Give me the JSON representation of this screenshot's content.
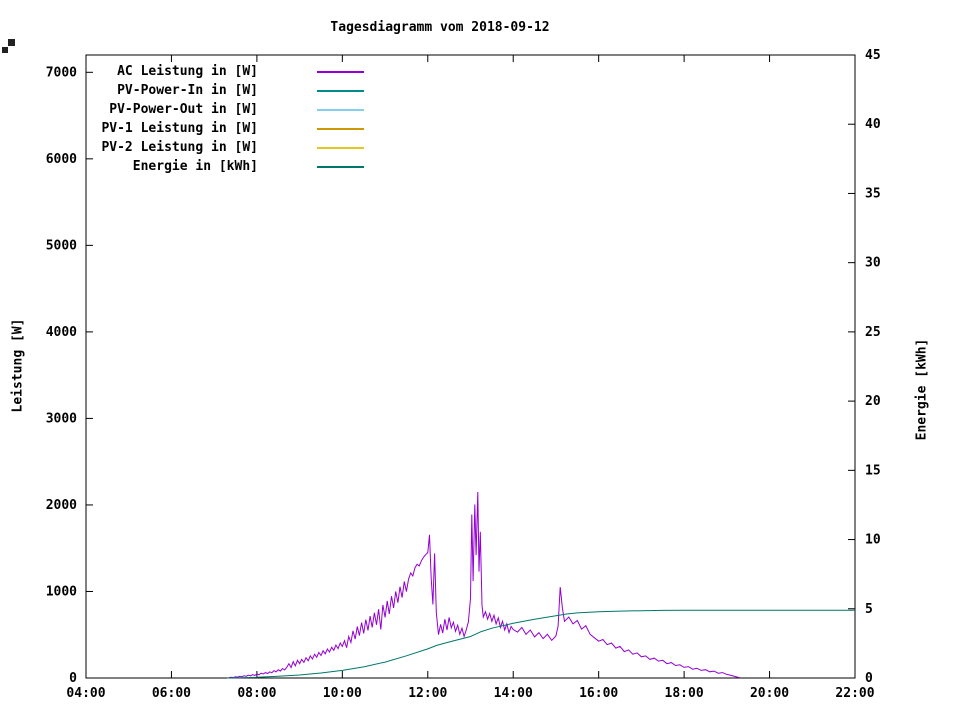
{
  "page": {
    "background": "#ffffff"
  },
  "chart_data": {
    "type": "line",
    "title": "Tagesdiagramm vom 2018-09-12",
    "grid": false,
    "legend_position": "top-left-inside",
    "x_axis": {
      "min_hour": 4,
      "max_hour": 22,
      "tick_step_hours": 2,
      "ticks": [
        "04:00",
        "06:00",
        "08:00",
        "10:00",
        "12:00",
        "14:00",
        "16:00",
        "18:00",
        "20:00",
        "22:00"
      ]
    },
    "y_left": {
      "label": "Leistung [W]",
      "min": 0,
      "max": 7200,
      "ticks": [
        0,
        1000,
        2000,
        3000,
        4000,
        5000,
        6000,
        7000
      ]
    },
    "y_right": {
      "label": "Energie [kWh]",
      "min": 0,
      "max": 45,
      "ticks": [
        0,
        5,
        10,
        15,
        20,
        25,
        30,
        35,
        40,
        45
      ]
    },
    "legend": [
      {
        "label": "AC Leistung in [W]",
        "color": "#9400d3"
      },
      {
        "label": "PV-Power-In in [W]",
        "color": "#008b8b"
      },
      {
        "label": "PV-Power-Out in [W]",
        "color": "#87ceeb"
      },
      {
        "label": "PV-1 Leistung in [W]",
        "color": "#cc9900"
      },
      {
        "label": "PV-2 Leistung in [W]",
        "color": "#e0c820"
      },
      {
        "label": "Energie in [kWh]",
        "color": "#00776b"
      }
    ],
    "series": [
      {
        "name": "AC Leistung in [W]",
        "axis": "left",
        "color": "#9400d3",
        "points": [
          [
            7.33,
            2
          ],
          [
            7.4,
            8
          ],
          [
            7.45,
            5
          ],
          [
            7.5,
            14
          ],
          [
            7.55,
            10
          ],
          [
            7.6,
            20
          ],
          [
            7.65,
            15
          ],
          [
            7.7,
            26
          ],
          [
            7.75,
            20
          ],
          [
            7.8,
            32
          ],
          [
            7.85,
            26
          ],
          [
            7.9,
            38
          ],
          [
            7.95,
            30
          ],
          [
            8.0,
            45
          ],
          [
            8.05,
            38
          ],
          [
            8.1,
            55
          ],
          [
            8.15,
            46
          ],
          [
            8.2,
            62
          ],
          [
            8.25,
            52
          ],
          [
            8.3,
            72
          ],
          [
            8.35,
            60
          ],
          [
            8.4,
            85
          ],
          [
            8.45,
            70
          ],
          [
            8.5,
            95
          ],
          [
            8.55,
            80
          ],
          [
            8.6,
            110
          ],
          [
            8.65,
            92
          ],
          [
            8.7,
            125
          ],
          [
            8.75,
            165
          ],
          [
            8.8,
            120
          ],
          [
            8.85,
            190
          ],
          [
            8.9,
            140
          ],
          [
            8.95,
            205
          ],
          [
            9.0,
            165
          ],
          [
            9.05,
            215
          ],
          [
            9.1,
            180
          ],
          [
            9.15,
            235
          ],
          [
            9.2,
            200
          ],
          [
            9.25,
            255
          ],
          [
            9.3,
            220
          ],
          [
            9.35,
            275
          ],
          [
            9.4,
            240
          ],
          [
            9.45,
            295
          ],
          [
            9.5,
            260
          ],
          [
            9.55,
            315
          ],
          [
            9.6,
            280
          ],
          [
            9.65,
            335
          ],
          [
            9.7,
            300
          ],
          [
            9.75,
            355
          ],
          [
            9.8,
            320
          ],
          [
            9.85,
            380
          ],
          [
            9.9,
            340
          ],
          [
            9.95,
            405
          ],
          [
            10.0,
            365
          ],
          [
            10.05,
            430
          ],
          [
            10.1,
            350
          ],
          [
            10.15,
            480
          ],
          [
            10.2,
            410
          ],
          [
            10.25,
            545
          ],
          [
            10.3,
            450
          ],
          [
            10.35,
            595
          ],
          [
            10.4,
            490
          ],
          [
            10.45,
            640
          ],
          [
            10.5,
            515
          ],
          [
            10.55,
            675
          ],
          [
            10.6,
            550
          ],
          [
            10.65,
            715
          ],
          [
            10.7,
            585
          ],
          [
            10.75,
            755
          ],
          [
            10.8,
            615
          ],
          [
            10.85,
            795
          ],
          [
            10.9,
            560
          ],
          [
            10.95,
            845
          ],
          [
            11.0,
            700
          ],
          [
            11.05,
            890
          ],
          [
            11.1,
            740
          ],
          [
            11.15,
            945
          ],
          [
            11.2,
            810
          ],
          [
            11.25,
            1000
          ],
          [
            11.3,
            870
          ],
          [
            11.35,
            1055
          ],
          [
            11.4,
            930
          ],
          [
            11.45,
            1115
          ],
          [
            11.5,
            1000
          ],
          [
            11.55,
            1145
          ],
          [
            11.6,
            1215
          ],
          [
            11.65,
            1180
          ],
          [
            11.7,
            1275
          ],
          [
            11.75,
            1315
          ],
          [
            11.8,
            1295
          ],
          [
            11.85,
            1355
          ],
          [
            11.9,
            1395
          ],
          [
            11.95,
            1425
          ],
          [
            12.0,
            1450
          ],
          [
            12.04,
            1655
          ],
          [
            12.08,
            1150
          ],
          [
            12.12,
            850
          ],
          [
            12.16,
            1440
          ],
          [
            12.2,
            760
          ],
          [
            12.25,
            500
          ],
          [
            12.3,
            620
          ],
          [
            12.35,
            520
          ],
          [
            12.4,
            680
          ],
          [
            12.45,
            555
          ],
          [
            12.5,
            700
          ],
          [
            12.55,
            580
          ],
          [
            12.6,
            645
          ],
          [
            12.65,
            540
          ],
          [
            12.7,
            610
          ],
          [
            12.75,
            505
          ],
          [
            12.8,
            575
          ],
          [
            12.85,
            480
          ],
          [
            12.9,
            555
          ],
          [
            12.95,
            650
          ],
          [
            13.0,
            920
          ],
          [
            13.03,
            1890
          ],
          [
            13.06,
            1120
          ],
          [
            13.1,
            2005
          ],
          [
            13.13,
            1420
          ],
          [
            13.17,
            2150
          ],
          [
            13.2,
            1230
          ],
          [
            13.23,
            1690
          ],
          [
            13.27,
            840
          ],
          [
            13.3,
            705
          ],
          [
            13.35,
            765
          ],
          [
            13.4,
            680
          ],
          [
            13.45,
            745
          ],
          [
            13.5,
            655
          ],
          [
            13.55,
            725
          ],
          [
            13.6,
            625
          ],
          [
            13.65,
            695
          ],
          [
            13.7,
            585
          ],
          [
            13.75,
            655
          ],
          [
            13.8,
            555
          ],
          [
            13.85,
            625
          ],
          [
            13.9,
            525
          ],
          [
            13.95,
            595
          ],
          [
            14.0,
            560
          ],
          [
            14.1,
            530
          ],
          [
            14.2,
            585
          ],
          [
            14.3,
            505
          ],
          [
            14.4,
            555
          ],
          [
            14.5,
            475
          ],
          [
            14.6,
            525
          ],
          [
            14.7,
            455
          ],
          [
            14.8,
            505
          ],
          [
            14.9,
            435
          ],
          [
            15.0,
            485
          ],
          [
            15.05,
            600
          ],
          [
            15.1,
            1050
          ],
          [
            15.15,
            810
          ],
          [
            15.2,
            655
          ],
          [
            15.3,
            705
          ],
          [
            15.4,
            625
          ],
          [
            15.5,
            665
          ],
          [
            15.6,
            565
          ],
          [
            15.7,
            605
          ],
          [
            15.8,
            505
          ],
          [
            15.9,
            465
          ],
          [
            16.0,
            425
          ],
          [
            16.1,
            445
          ],
          [
            16.2,
            385
          ],
          [
            16.3,
            405
          ],
          [
            16.4,
            345
          ],
          [
            16.5,
            365
          ],
          [
            16.6,
            305
          ],
          [
            16.7,
            325
          ],
          [
            16.8,
            275
          ],
          [
            16.9,
            290
          ],
          [
            17.0,
            245
          ],
          [
            17.1,
            255
          ],
          [
            17.2,
            215
          ],
          [
            17.3,
            230
          ],
          [
            17.4,
            195
          ],
          [
            17.5,
            205
          ],
          [
            17.6,
            165
          ],
          [
            17.7,
            178
          ],
          [
            17.8,
            145
          ],
          [
            17.9,
            152
          ],
          [
            18.0,
            122
          ],
          [
            18.1,
            132
          ],
          [
            18.2,
            102
          ],
          [
            18.3,
            112
          ],
          [
            18.4,
            88
          ],
          [
            18.5,
            96
          ],
          [
            18.6,
            72
          ],
          [
            18.7,
            80
          ],
          [
            18.8,
            56
          ],
          [
            18.9,
            62
          ],
          [
            19.0,
            42
          ],
          [
            19.1,
            30
          ],
          [
            19.2,
            16
          ],
          [
            19.3,
            4
          ]
        ]
      },
      {
        "name": "PV-Power-In in [W]",
        "axis": "left",
        "color": "#008b8b",
        "points": []
      },
      {
        "name": "PV-Power-Out in [W]",
        "axis": "left",
        "color": "#87ceeb",
        "points": []
      },
      {
        "name": "PV-1 Leistung in [W]",
        "axis": "left",
        "color": "#cc9900",
        "points": []
      },
      {
        "name": "PV-2 Leistung in [W]",
        "axis": "left",
        "color": "#e0c820",
        "points": []
      },
      {
        "name": "Energie in [kWh]",
        "axis": "right",
        "color": "#00776b",
        "points": [
          [
            7.3,
            0
          ],
          [
            8.0,
            0.05
          ],
          [
            8.5,
            0.12
          ],
          [
            9.0,
            0.22
          ],
          [
            9.5,
            0.36
          ],
          [
            10.0,
            0.55
          ],
          [
            10.5,
            0.8
          ],
          [
            11.0,
            1.15
          ],
          [
            11.5,
            1.6
          ],
          [
            12.0,
            2.1
          ],
          [
            12.2,
            2.35
          ],
          [
            12.5,
            2.6
          ],
          [
            13.0,
            3.0
          ],
          [
            13.25,
            3.35
          ],
          [
            13.5,
            3.6
          ],
          [
            14.0,
            3.95
          ],
          [
            14.5,
            4.25
          ],
          [
            15.0,
            4.5
          ],
          [
            15.25,
            4.62
          ],
          [
            15.5,
            4.7
          ],
          [
            16.0,
            4.78
          ],
          [
            16.5,
            4.83
          ],
          [
            17.0,
            4.86
          ],
          [
            17.5,
            4.88
          ],
          [
            18.0,
            4.89
          ],
          [
            19.0,
            4.9
          ],
          [
            20.0,
            4.9
          ],
          [
            21.0,
            4.9
          ],
          [
            22.0,
            4.9
          ]
        ]
      }
    ]
  }
}
